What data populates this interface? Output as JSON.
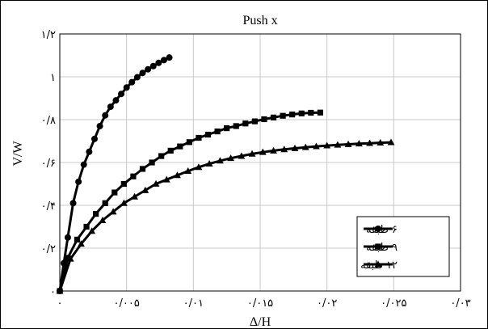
{
  "chart_data": {
    "type": "line",
    "title": "Push x",
    "xlabel": "Δ/H",
    "ylabel": "V/W",
    "xlim": [
      0,
      0.03
    ],
    "ylim": [
      0,
      1.2
    ],
    "x_ticks": [
      0,
      0.005,
      0.01,
      0.015,
      0.02,
      0.025,
      0.03
    ],
    "x_tick_labels": [
      "۰",
      "۰/۰۰۵",
      "۰/۰۱",
      "۰/۰۱۵",
      "۰/۰۲",
      "۰/۰۲۵",
      "۰/۰۳"
    ],
    "y_ticks": [
      0,
      0.2,
      0.4,
      0.6,
      0.8,
      1.0,
      1.2
    ],
    "y_tick_labels": [
      "۰",
      "۰/۲",
      "۰/۴",
      "۰/۶",
      "۰/۸",
      "۱",
      "۱/۲"
    ],
    "grid": true,
    "legend_position": "bottom-right",
    "series": [
      {
        "name": "۶ طبقه",
        "marker": "circle",
        "color": "#000000",
        "x": [
          0,
          0.0003,
          0.0006,
          0.001,
          0.0014,
          0.0018,
          0.0022,
          0.0026,
          0.003,
          0.0034,
          0.0038,
          0.0042,
          0.0046,
          0.005,
          0.0054,
          0.0058,
          0.0062,
          0.0066,
          0.007,
          0.0074,
          0.0078,
          0.0082
        ],
        "y": [
          0,
          0.13,
          0.25,
          0.41,
          0.51,
          0.59,
          0.65,
          0.71,
          0.77,
          0.82,
          0.86,
          0.89,
          0.92,
          0.95,
          0.975,
          0.998,
          1.018,
          1.035,
          1.05,
          1.065,
          1.078,
          1.09
        ]
      },
      {
        "name": "۹ طبقه",
        "marker": "square",
        "color": "#000000",
        "x": [
          0,
          0.0006,
          0.0013,
          0.002,
          0.0027,
          0.0034,
          0.0041,
          0.0048,
          0.0055,
          0.0062,
          0.0069,
          0.0076,
          0.0083,
          0.009,
          0.0097,
          0.0104,
          0.0111,
          0.0118,
          0.0125,
          0.0132,
          0.0139,
          0.0146,
          0.0153,
          0.016,
          0.0167,
          0.0174,
          0.0181,
          0.0188,
          0.0195
        ],
        "y": [
          0,
          0.155,
          0.24,
          0.3,
          0.36,
          0.41,
          0.46,
          0.5,
          0.535,
          0.57,
          0.6,
          0.63,
          0.655,
          0.675,
          0.695,
          0.715,
          0.73,
          0.745,
          0.76,
          0.77,
          0.782,
          0.792,
          0.802,
          0.81,
          0.818,
          0.824,
          0.829,
          0.832,
          0.833
        ]
      },
      {
        "name": "۱۲ طبقه",
        "marker": "triangle",
        "color": "#000000",
        "x": [
          0,
          0.0008,
          0.0016,
          0.0024,
          0.0032,
          0.004,
          0.0048,
          0.0056,
          0.0064,
          0.0072,
          0.008,
          0.0088,
          0.0096,
          0.0104,
          0.0112,
          0.012,
          0.0128,
          0.0136,
          0.0144,
          0.0152,
          0.016,
          0.0168,
          0.0176,
          0.0184,
          0.0192,
          0.02,
          0.0208,
          0.0216,
          0.0224,
          0.0232,
          0.024,
          0.0248
        ],
        "y": [
          0,
          0.15,
          0.22,
          0.28,
          0.33,
          0.37,
          0.41,
          0.44,
          0.47,
          0.5,
          0.52,
          0.54,
          0.56,
          0.578,
          0.594,
          0.608,
          0.62,
          0.63,
          0.64,
          0.648,
          0.655,
          0.661,
          0.666,
          0.671,
          0.675,
          0.679,
          0.682,
          0.685,
          0.688,
          0.69,
          0.692,
          0.694
        ]
      }
    ]
  }
}
